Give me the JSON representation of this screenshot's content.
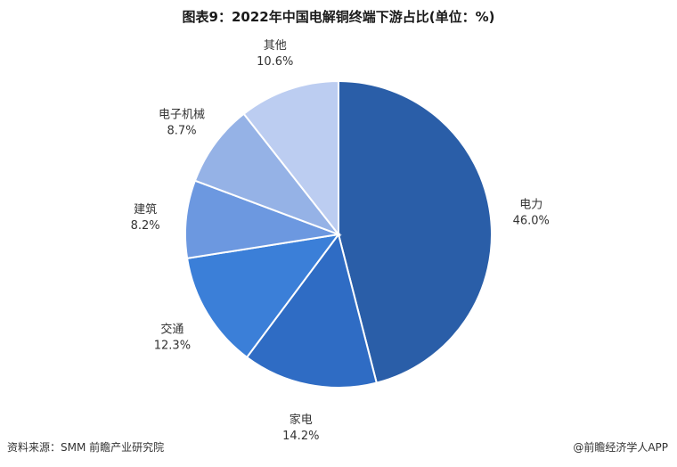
{
  "title": "图表9：2022年中国电解铜终端下游占比(单位：%)",
  "chart_data": {
    "type": "pie",
    "title": "图表9：2022年中国电解铜终端下游占比(单位：%)",
    "unit": "%",
    "legend": "none",
    "slices": [
      {
        "label": "电力",
        "value": 46.0,
        "display": "46.0%",
        "color": "#2a5ea8"
      },
      {
        "label": "家电",
        "value": 14.2,
        "display": "14.2%",
        "color": "#2f6cc4"
      },
      {
        "label": "交通",
        "value": 12.3,
        "display": "12.3%",
        "color": "#3b7fd8"
      },
      {
        "label": "建筑",
        "value": 8.2,
        "display": "8.2%",
        "color": "#6c98e0"
      },
      {
        "label": "电子机械",
        "value": 8.7,
        "display": "8.7%",
        "color": "#95b2e6"
      },
      {
        "label": "其他",
        "value": 10.6,
        "display": "10.6%",
        "color": "#bccdf1"
      }
    ]
  },
  "footer": {
    "source": "资料来源：SMM 前瞻产业研究院",
    "brand": "@前瞻经济学人APP"
  }
}
